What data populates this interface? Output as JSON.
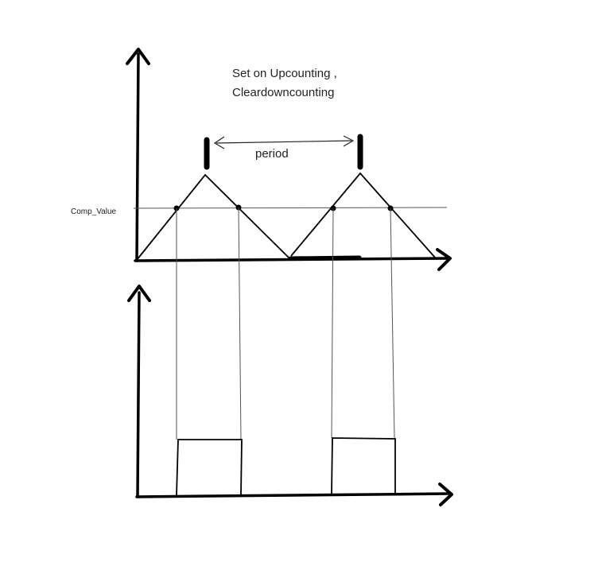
{
  "diagram": {
    "title_line1": "Set on Upcounting ,",
    "title_line2": "Cleardowncounting",
    "period_label": "period",
    "comp_label": "Comp_Value",
    "colors": {
      "ink": "#000000",
      "thin": "#555555",
      "background": "#ffffff"
    }
  }
}
